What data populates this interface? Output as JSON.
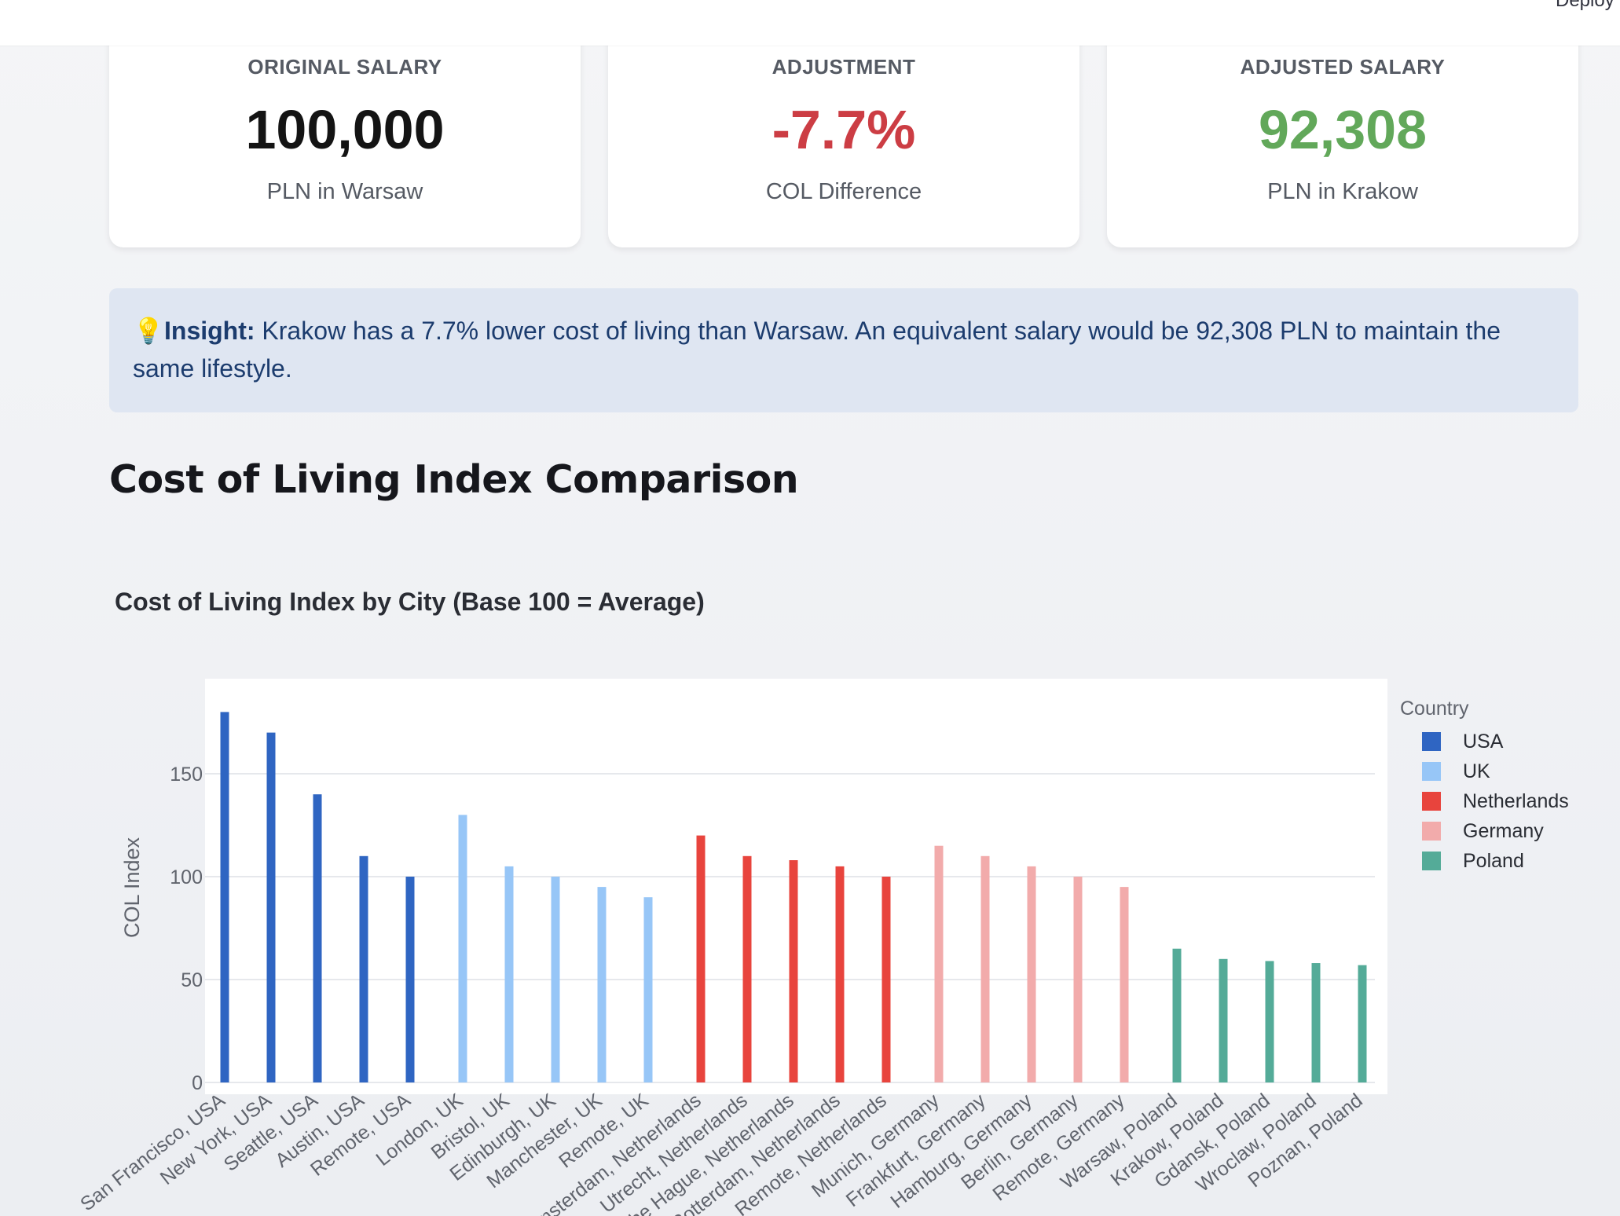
{
  "header": {
    "deploy_label": "Deploy"
  },
  "metrics": [
    {
      "label": "ORIGINAL SALARY",
      "value": "100,000",
      "sub": "PLN in Warsaw",
      "color": "#141414"
    },
    {
      "label": "ADJUSTMENT",
      "value": "-7.7%",
      "sub": "COL Difference",
      "color": "#cc3d44"
    },
    {
      "label": "ADJUSTED SALARY",
      "value": "92,308",
      "sub": "PLN in Krakow",
      "color": "#62a85a"
    }
  ],
  "insight": {
    "icon": "lightbulb-icon",
    "glyph": "💡",
    "label": "Insight:",
    "text": " Krakow has a 7.7% lower cost of living than Warsaw. An equivalent salary would be 92,308 PLN to maintain the same lifestyle."
  },
  "section_title": "Cost of Living Index Comparison",
  "chart_data": {
    "type": "bar",
    "title": "Cost of Living Index by City (Base 100 = Average)",
    "xlabel": "",
    "ylabel": "COL Index",
    "ylim": [
      0,
      182
    ],
    "yticks": [
      0,
      50,
      100,
      150
    ],
    "grid": true,
    "legend": {
      "title": "Country",
      "placement": "right"
    },
    "colors": {
      "USA": "#2f65c2",
      "UK": "#97c6f7",
      "Netherlands": "#e8443d",
      "Germany": "#f2abab",
      "Poland": "#54ab98"
    },
    "series": [
      {
        "name": "USA",
        "categories": [
          "San Francisco, USA",
          "New York, USA",
          "Seattle, USA",
          "Austin, USA",
          "Remote, USA"
        ],
        "values": [
          180,
          170,
          140,
          110,
          100
        ]
      },
      {
        "name": "UK",
        "categories": [
          "London, UK",
          "Bristol, UK",
          "Edinburgh, UK",
          "Manchester, UK",
          "Remote, UK"
        ],
        "values": [
          130,
          105,
          100,
          95,
          90
        ]
      },
      {
        "name": "Netherlands",
        "categories": [
          "Amsterdam, Netherlands",
          "Utrecht, Netherlands",
          "The Hague, Netherlands",
          "Rotterdam, Netherlands",
          "Remote, Netherlands"
        ],
        "values": [
          120,
          110,
          108,
          105,
          100
        ]
      },
      {
        "name": "Germany",
        "categories": [
          "Munich, Germany",
          "Frankfurt, Germany",
          "Hamburg, Germany",
          "Berlin, Germany",
          "Remote, Germany"
        ],
        "values": [
          115,
          110,
          105,
          100,
          95
        ]
      },
      {
        "name": "Poland",
        "categories": [
          "Warsaw, Poland",
          "Krakow, Poland",
          "Gdansk, Poland",
          "Wroclaw, Poland",
          "Poznan, Poland"
        ],
        "values": [
          65,
          60,
          59,
          58,
          57
        ]
      }
    ]
  }
}
